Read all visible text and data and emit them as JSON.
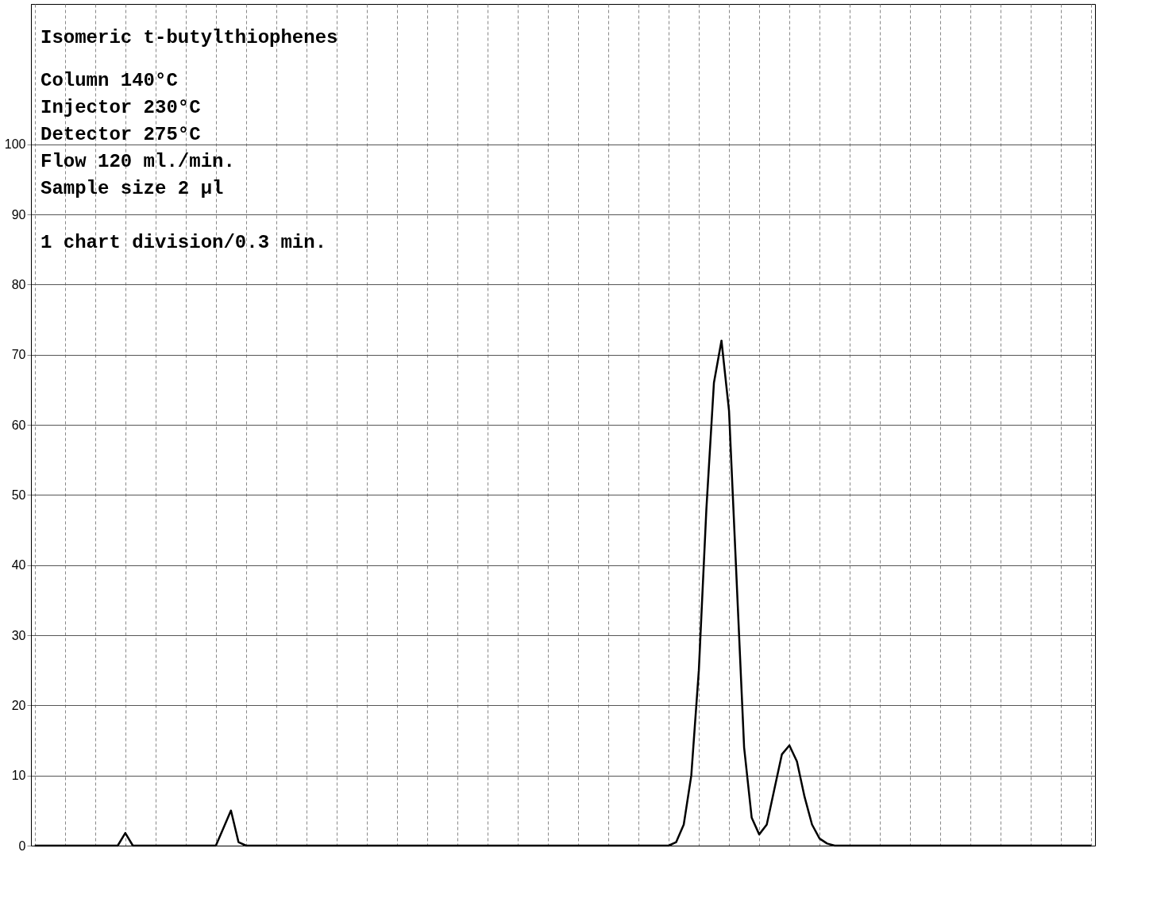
{
  "chart_data": {
    "type": "line",
    "annotations": [
      "Isomeric t-butylthiophenes",
      "Column 140°C",
      "Injector 230°C",
      "Detector 275°C",
      "Flow 120 ml./min.",
      "Sample size 2 µl",
      "1 chart division/0.3 min."
    ],
    "categories": [
      null,
      null,
      null,
      null,
      null,
      null,
      null,
      null,
      null,
      null,
      null,
      null,
      null,
      null,
      null,
      null,
      null,
      null,
      null,
      null,
      null,
      null,
      null,
      null,
      null,
      null,
      null,
      null,
      null,
      null,
      null,
      null,
      null,
      null,
      null,
      null,
      null,
      null,
      null,
      null,
      null,
      null,
      null,
      null,
      null,
      null,
      null,
      null,
      null,
      null,
      null,
      null,
      null,
      null,
      null,
      null,
      null,
      null,
      null,
      null,
      null,
      null,
      null,
      null,
      null,
      null,
      null,
      null,
      null,
      null,
      null,
      null,
      null,
      null,
      null,
      null,
      null,
      null,
      null,
      null,
      null,
      null,
      null,
      null,
      null,
      null,
      null,
      null,
      null,
      null,
      null,
      null,
      null,
      null,
      null,
      null,
      null,
      null,
      null,
      null,
      null,
      null,
      null,
      null,
      null,
      null,
      null,
      null,
      null,
      null,
      null,
      null,
      null,
      null,
      null,
      null,
      null,
      null,
      null,
      null,
      null,
      null,
      null,
      null,
      null,
      null,
      null,
      null,
      null,
      null,
      null,
      null,
      null,
      null,
      null,
      null,
      null,
      null,
      null,
      null,
      null
    ],
    "series": [
      {
        "color": "#000000",
        "values": [
          0,
          0,
          0,
          0,
          0,
          0,
          0,
          0,
          0,
          0,
          0,
          0,
          1.8,
          0,
          0,
          0,
          0,
          0,
          0,
          0,
          0,
          0,
          0,
          0,
          0,
          2.5,
          5,
          0.5,
          0,
          0,
          0,
          0,
          0,
          0,
          0,
          0,
          0,
          0,
          0,
          0,
          0,
          0,
          0,
          0,
          0,
          0,
          0,
          0,
          0,
          0,
          0,
          0,
          0,
          0,
          0,
          0,
          0,
          0,
          0,
          0,
          0,
          0,
          0,
          0,
          0,
          0,
          0,
          0,
          0,
          0,
          0,
          0,
          0,
          0,
          0,
          0,
          0,
          0,
          0,
          0,
          0,
          0,
          0,
          0,
          0,
          0.5,
          3,
          10,
          25,
          48,
          66,
          72,
          62,
          38,
          14,
          4,
          1.6,
          3,
          8,
          13,
          14.3,
          12,
          7,
          3,
          1,
          0.3,
          0,
          0,
          0,
          0,
          0,
          0,
          0,
          0,
          0,
          0,
          0,
          0,
          0,
          0,
          0,
          0,
          0,
          0,
          0,
          0,
          0,
          0,
          0,
          0,
          0,
          0,
          0,
          0,
          0,
          0,
          0,
          0,
          0,
          0,
          0
        ]
      }
    ],
    "ylim": [
      0,
      120
    ],
    "yticks": [
      0,
      10,
      20,
      30,
      40,
      50,
      60,
      70,
      80,
      90,
      100
    ],
    "grid": true,
    "legend": false
  }
}
